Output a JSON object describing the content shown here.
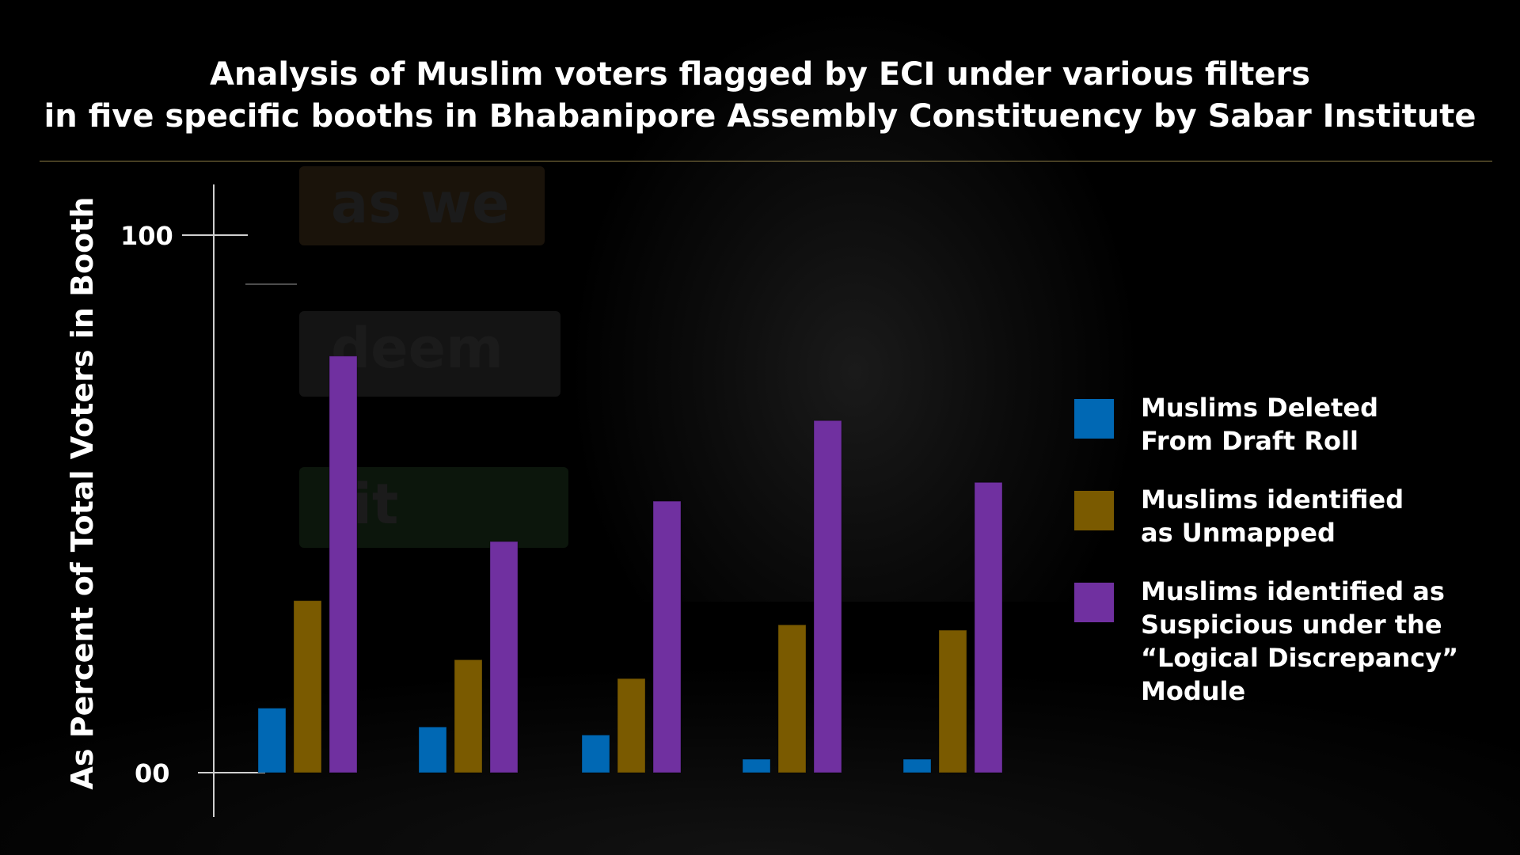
{
  "title": "Analysis of Muslim voters flagged by ECI under various filters\nin five specific booths in Bhabanipore Assembly Constituency by Sabar Institute",
  "background_words": [
    "as we",
    "deem",
    "fit"
  ],
  "chart_data": {
    "type": "bar",
    "title": "Analysis of Muslim voters flagged by ECI under various filters in five specific booths in Bhabanipore Assembly Constituency by Sabar Institute",
    "xlabel": "",
    "ylabel": "As Percent of Total Voters in Booth",
    "ylim": [
      0,
      100
    ],
    "ytick_labels": [
      "00",
      "100"
    ],
    "categories": [
      "",
      "",
      "",
      "",
      ""
    ],
    "series": [
      {
        "name": "Muslims Deleted\nFrom Draft Roll",
        "color": "#0068b4",
        "values": [
          12,
          8.5,
          7,
          2.5,
          2.5
        ]
      },
      {
        "name": "Muslims identified\nas Unmapped",
        "color": "#7a5a00",
        "values": [
          32,
          21,
          17.5,
          27.5,
          26.5
        ]
      },
      {
        "name": "Muslims identified as\nSuspicious under the\n“Logical Discrepancy”\nModule",
        "color": "#7030a0",
        "values": [
          77.5,
          43,
          50.5,
          65.5,
          54
        ]
      }
    ],
    "grid": false,
    "legend_position": "right"
  }
}
